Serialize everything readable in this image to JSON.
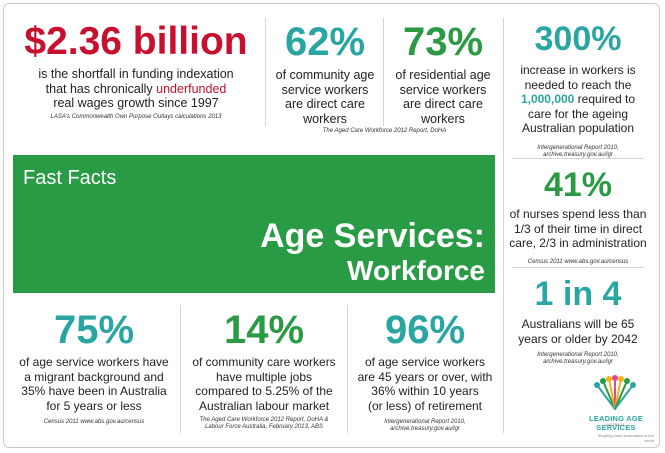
{
  "stat_funding": {
    "value": "$2.36 billion",
    "line1": "is the shortfall in funding indexation",
    "line2_pre": "that has chronically ",
    "line2_hl": "underfunded",
    "line3": "real wages growth since 1997",
    "source": "LASA's Commonwealth Own Purpose Outlays calculations 2013",
    "color": "#c8102e"
  },
  "stat_community": {
    "value": "62%",
    "lines": [
      "of community age",
      "service workers",
      "are direct care",
      "workers"
    ],
    "color": "#2aa6a2"
  },
  "stat_residential": {
    "value": "73%",
    "lines": [
      "of residential age",
      "service workers",
      "are direct care",
      "workers"
    ],
    "color": "#2b9a44"
  },
  "source_workforce_2012": "The Aged Care Workforce 2012 Report, DoHA",
  "stat_increase": {
    "value": "300%",
    "line1": "increase in workers is",
    "line2": "needed to reach the",
    "line3_hl": "1,000,000",
    "line3_post": " required  to",
    "line4": "care for the ageing",
    "line5": "Australian population",
    "source1": "Intergenerational Report 2010,",
    "source2": "archive.treasury.gov.au/igr"
  },
  "stat_nurses": {
    "value": "41%",
    "lines": [
      "of nurses spend less than",
      "1/3 of their time in direct",
      "care, 2/3 in administration"
    ],
    "source": "Census 2011 www.abs.gov.au/census",
    "color": "#2b9a44"
  },
  "stat_aged": {
    "value": "1 in 4",
    "lines": [
      "Australians will be 65",
      "years or older by 2042"
    ],
    "source1": "Intergenerational Report 2010,",
    "source2": "archive.treasury.gov.au/igr",
    "color": "#2aa6a2"
  },
  "banner": {
    "fast_facts": "Fast Facts",
    "title1": "Age Services:",
    "title2": "Workforce",
    "color": "#2a9b45"
  },
  "stat_migrant": {
    "value": "75%",
    "lines": [
      "of age service workers have",
      "a migrant background and",
      "35% have been in Australia",
      "for 5 years or less"
    ],
    "source": "Census 2011 www.abs.gov.au/census",
    "color": "#2aa6a2"
  },
  "stat_jobs": {
    "value": "14%",
    "lines": [
      "of community care workers",
      "have multiple jobs",
      "compared to 5.25% of the",
      "Australian labour market"
    ],
    "source1": "The Aged Care Workforce 2012 Report, DoHA &",
    "source2": "Labour Force Australia, February 2013, ABS",
    "color": "#2b9a44"
  },
  "stat_age45": {
    "value": "96%",
    "lines": [
      "of age service workers",
      "are 45 years or over, with",
      "36% within 10 years",
      "(or less) of retirement"
    ],
    "source1": "Intergenerational Report 2010,",
    "source2": "archive.treasury.gov.au/igr",
    "color": "#2aa6a2"
  },
  "logo": {
    "name": "LEADING AGE SERVICES",
    "sub": "AUSTRALIA"
  },
  "footer": "Shaping older Australians in the world"
}
